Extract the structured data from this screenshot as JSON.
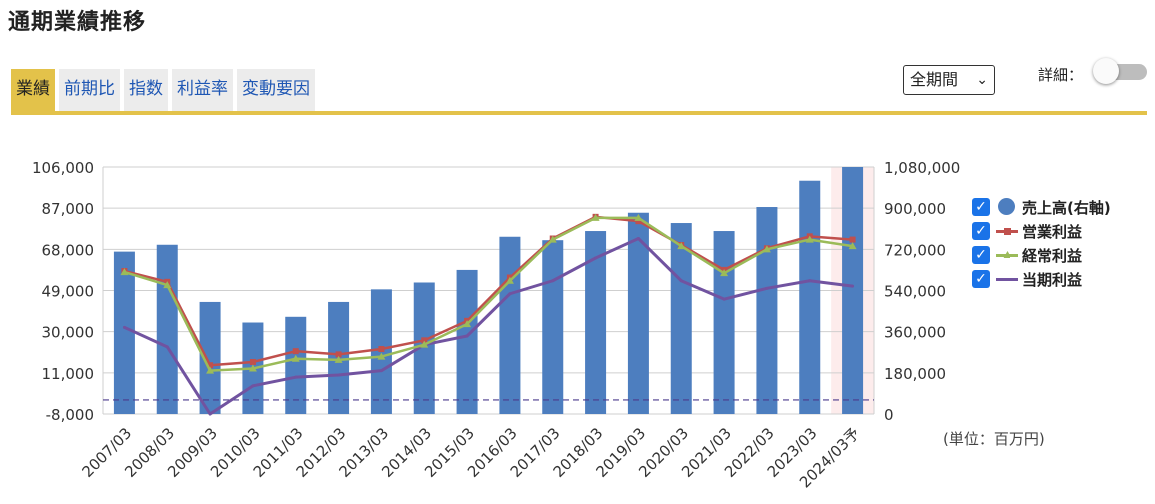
{
  "title": "通期業績推移",
  "tabs": [
    {
      "label": "業績",
      "active": true
    },
    {
      "label": "前期比",
      "active": false
    },
    {
      "label": "指数",
      "active": false
    },
    {
      "label": "利益率",
      "active": false
    },
    {
      "label": "変動要因",
      "active": false
    }
  ],
  "period_select": {
    "value": "全期間",
    "chevron": "⌄"
  },
  "detail": {
    "label": "詳細：",
    "on": false
  },
  "unit_note": "(単位：百万円)",
  "colors": {
    "bar": "#4d7ebf",
    "operating": "#c0504d",
    "ordinary": "#9bbb59",
    "net": "#7153a0",
    "accent": "#e3c24a",
    "checkbox": "#1a73e8"
  },
  "legend": [
    {
      "label": "売上高(右軸)",
      "checked": true,
      "icon": "circle-icon"
    },
    {
      "label": "営業利益",
      "checked": true,
      "icon": "square-line-icon"
    },
    {
      "label": "経常利益",
      "checked": true,
      "icon": "triangle-line-icon"
    },
    {
      "label": "当期利益",
      "checked": true,
      "icon": "line-icon"
    }
  ],
  "chart_data": {
    "type": "bar+line",
    "categories": [
      "2007/03",
      "2008/03",
      "2009/03",
      "2010/03",
      "2011/03",
      "2012/03",
      "2013/03",
      "2014/03",
      "2015/03",
      "2016/03",
      "2017/03",
      "2018/03",
      "2019/03",
      "2020/03",
      "2021/03",
      "2022/03",
      "2023/03",
      "2024/03予"
    ],
    "left_axis": {
      "ticks": [
        "106,000",
        "87,000",
        "68,000",
        "49,000",
        "30,000",
        "11,000",
        "-8,000"
      ],
      "min": -8000,
      "max": 106000
    },
    "right_axis": {
      "ticks": [
        "1,080,000",
        "900,000",
        "720,000",
        "540,000",
        "360,000",
        "180,000",
        "0"
      ],
      "min": 0,
      "max": 1080000
    },
    "series": [
      {
        "name": "売上高(右軸)",
        "type": "bar",
        "axis": "right",
        "values": [
          710000,
          740000,
          490000,
          400000,
          425000,
          490000,
          545000,
          575000,
          630000,
          775000,
          760000,
          800000,
          880000,
          835000,
          800000,
          905000,
          1020000,
          1080000
        ]
      },
      {
        "name": "営業利益",
        "type": "line",
        "axis": "left",
        "marker": "square",
        "values": [
          58000,
          53000,
          14500,
          16000,
          21000,
          19500,
          22000,
          26000,
          35000,
          55000,
          73000,
          83000,
          81000,
          70000,
          58500,
          68500,
          74000,
          72500
        ]
      },
      {
        "name": "経常利益",
        "type": "line",
        "axis": "left",
        "marker": "triangle",
        "values": [
          57500,
          51500,
          12000,
          13000,
          17500,
          17000,
          18500,
          24000,
          33500,
          53500,
          72500,
          82500,
          82500,
          69500,
          57000,
          68000,
          72500,
          69500
        ]
      },
      {
        "name": "当期利益",
        "type": "line",
        "axis": "left",
        "marker": "none",
        "values": [
          32000,
          23000,
          -8000,
          5000,
          9000,
          10000,
          12000,
          24000,
          28000,
          47500,
          53500,
          64000,
          73000,
          53500,
          45000,
          50000,
          53500,
          51000
        ]
      }
    ],
    "reference_line": {
      "axis": "left",
      "value": -1500,
      "style": "dashed"
    },
    "highlight_category": "2024/03予"
  }
}
